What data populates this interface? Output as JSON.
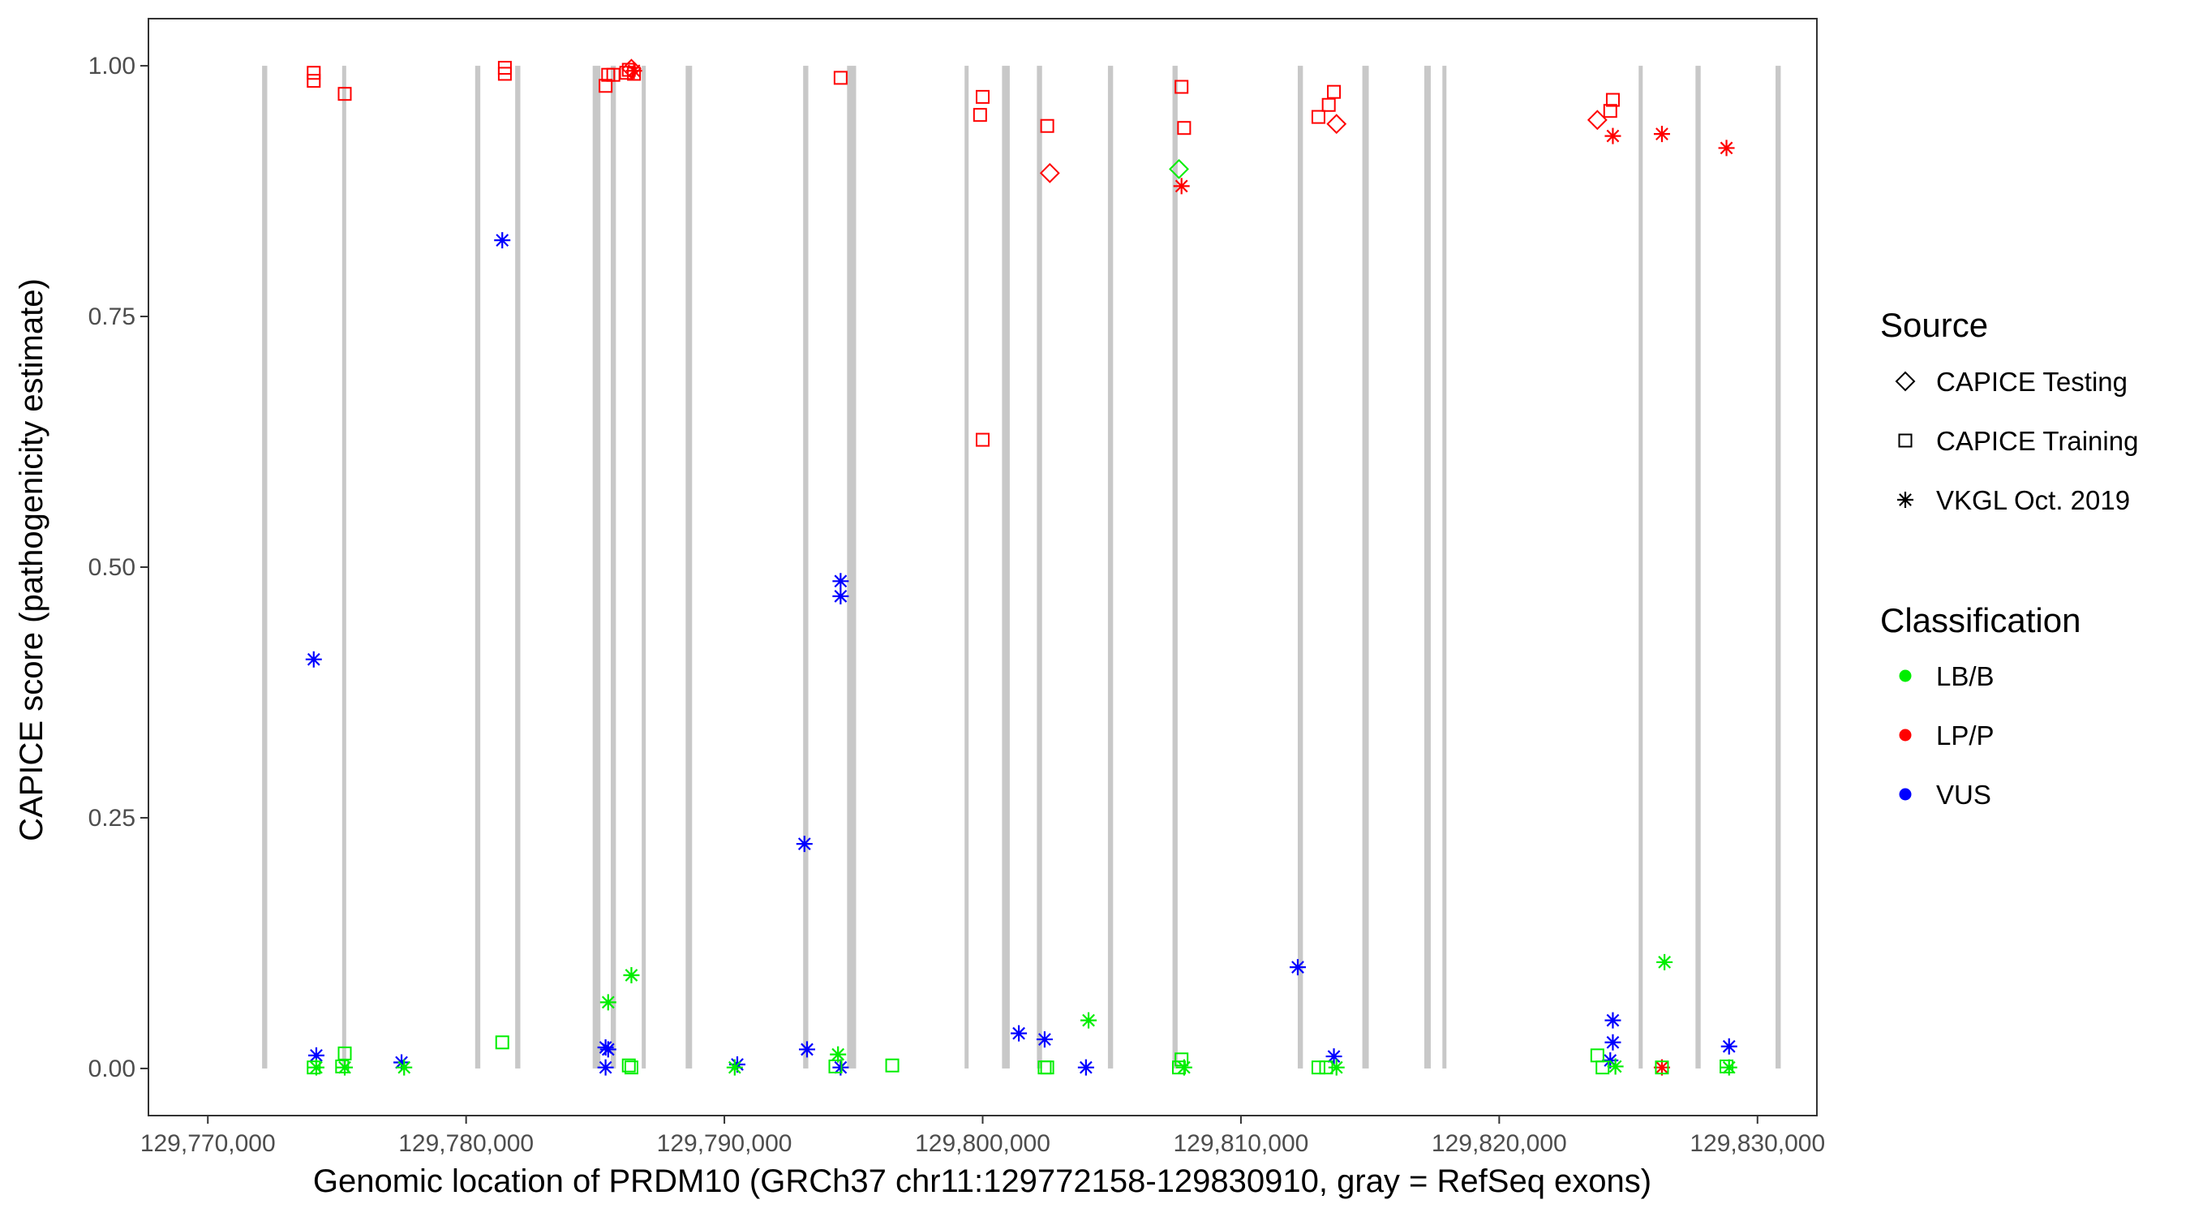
{
  "chart_data": {
    "type": "scatter",
    "xlabel": "Genomic location of PRDM10 (GRCh37 chr11:129772158-129830910, gray = RefSeq exons)",
    "ylabel": "CAPICE score (pathogenicity estimate)",
    "xlim": [
      129767700,
      129832300
    ],
    "ylim": [
      -0.047,
      1.047
    ],
    "x_ticks": [
      129770000,
      129780000,
      129790000,
      129800000,
      129810000,
      129820000,
      129830000
    ],
    "x_tick_labels": [
      "129,770,000",
      "129,780,000",
      "129,790,000",
      "129,800,000",
      "129,810,000",
      "129,820,000",
      "129,830,000"
    ],
    "y_ticks": [
      0,
      0.25,
      0.5,
      0.75,
      1
    ],
    "y_tick_labels": [
      "0.00",
      "0.25",
      "0.50",
      "0.75",
      "1.00"
    ],
    "grid": false,
    "exons": [
      [
        129772100,
        129772300
      ],
      [
        129775200,
        129775350
      ],
      [
        129780350,
        129780550
      ],
      [
        129781900,
        129782100
      ],
      [
        129784900,
        129785200
      ],
      [
        129785600,
        129785800
      ],
      [
        129786800,
        129786950
      ],
      [
        129788500,
        129788750
      ],
      [
        129793050,
        129793250
      ],
      [
        129794750,
        129795100
      ],
      [
        129799300,
        129799450
      ],
      [
        129800750,
        129801050
      ],
      [
        129802100,
        129802300
      ],
      [
        129804850,
        129805050
      ],
      [
        129807350,
        129807550
      ],
      [
        129812200,
        129812400
      ],
      [
        129814700,
        129814950
      ],
      [
        129817100,
        129817350
      ],
      [
        129817800,
        129817950
      ],
      [
        129825400,
        129825550
      ],
      [
        129827600,
        129827800
      ],
      [
        129830700,
        129830900
      ]
    ],
    "legend": {
      "position": "right",
      "source_title": "Source",
      "source_entries": [
        {
          "label": "CAPICE Testing",
          "shape": "diamond"
        },
        {
          "label": "CAPICE Training",
          "shape": "square"
        },
        {
          "label": "VKGL Oct. 2019",
          "shape": "asterisk"
        }
      ],
      "class_title": "Classification",
      "class_entries": [
        {
          "label": "LB/B",
          "color": "#00ee00"
        },
        {
          "label": "LP/P",
          "color": "#ff0000"
        },
        {
          "label": "VUS",
          "color": "#0000ff"
        }
      ]
    },
    "colors": {
      "LB/B": "#00ee00",
      "LP/P": "#ff0000",
      "VUS": "#0000ff"
    },
    "points": [
      {
        "x": 129774100,
        "y": 0.993,
        "source": "CAPICE Training",
        "class": "LP/P"
      },
      {
        "x": 129774100,
        "y": 0.985,
        "source": "CAPICE Training",
        "class": "LP/P"
      },
      {
        "x": 129775300,
        "y": 0.972,
        "source": "CAPICE Training",
        "class": "LP/P"
      },
      {
        "x": 129781500,
        "y": 0.998,
        "source": "CAPICE Training",
        "class": "LP/P"
      },
      {
        "x": 129781500,
        "y": 0.992,
        "source": "CAPICE Training",
        "class": "LP/P"
      },
      {
        "x": 129785500,
        "y": 0.991,
        "source": "CAPICE Training",
        "class": "LP/P"
      },
      {
        "x": 129785700,
        "y": 0.991,
        "source": "CAPICE Training",
        "class": "LP/P"
      },
      {
        "x": 129785400,
        "y": 0.98,
        "source": "CAPICE Training",
        "class": "LP/P"
      },
      {
        "x": 129786200,
        "y": 0.993,
        "source": "CAPICE Training",
        "class": "LP/P"
      },
      {
        "x": 129786300,
        "y": 0.996,
        "source": "CAPICE Training",
        "class": "LP/P"
      },
      {
        "x": 129786500,
        "y": 0.992,
        "source": "CAPICE Training",
        "class": "LP/P"
      },
      {
        "x": 129786400,
        "y": 0.997,
        "source": "CAPICE Testing",
        "class": "LP/P"
      },
      {
        "x": 129786500,
        "y": 0.995,
        "source": "VKGL Oct. 2019",
        "class": "LP/P"
      },
      {
        "x": 129794500,
        "y": 0.988,
        "source": "CAPICE Training",
        "class": "LP/P"
      },
      {
        "x": 129800000,
        "y": 0.969,
        "source": "CAPICE Training",
        "class": "LP/P"
      },
      {
        "x": 129799900,
        "y": 0.951,
        "source": "CAPICE Training",
        "class": "LP/P"
      },
      {
        "x": 129800000,
        "y": 0.627,
        "source": "CAPICE Training",
        "class": "LP/P"
      },
      {
        "x": 129802500,
        "y": 0.94,
        "source": "CAPICE Training",
        "class": "LP/P"
      },
      {
        "x": 129802600,
        "y": 0.893,
        "source": "CAPICE Testing",
        "class": "LP/P"
      },
      {
        "x": 129807700,
        "y": 0.979,
        "source": "CAPICE Training",
        "class": "LP/P"
      },
      {
        "x": 129807800,
        "y": 0.938,
        "source": "CAPICE Training",
        "class": "LP/P"
      },
      {
        "x": 129807700,
        "y": 0.88,
        "source": "VKGL Oct. 2019",
        "class": "LP/P"
      },
      {
        "x": 129813600,
        "y": 0.974,
        "source": "CAPICE Training",
        "class": "LP/P"
      },
      {
        "x": 129813400,
        "y": 0.961,
        "source": "CAPICE Training",
        "class": "LP/P"
      },
      {
        "x": 129813000,
        "y": 0.949,
        "source": "CAPICE Training",
        "class": "LP/P"
      },
      {
        "x": 129813700,
        "y": 0.942,
        "source": "CAPICE Testing",
        "class": "LP/P"
      },
      {
        "x": 129823800,
        "y": 0.946,
        "source": "CAPICE Testing",
        "class": "LP/P"
      },
      {
        "x": 129824400,
        "y": 0.966,
        "source": "CAPICE Training",
        "class": "LP/P"
      },
      {
        "x": 129824300,
        "y": 0.955,
        "source": "CAPICE Training",
        "class": "LP/P"
      },
      {
        "x": 129824400,
        "y": 0.93,
        "source": "VKGL Oct. 2019",
        "class": "LP/P"
      },
      {
        "x": 129826300,
        "y": 0.932,
        "source": "VKGL Oct. 2019",
        "class": "LP/P"
      },
      {
        "x": 129828800,
        "y": 0.918,
        "source": "VKGL Oct. 2019",
        "class": "LP/P"
      },
      {
        "x": 129826300,
        "y": 0.001,
        "source": "VKGL Oct. 2019",
        "class": "LP/P"
      },
      {
        "x": 129774100,
        "y": 0.408,
        "source": "VKGL Oct. 2019",
        "class": "VUS"
      },
      {
        "x": 129774200,
        "y": 0.013,
        "source": "VKGL Oct. 2019",
        "class": "VUS"
      },
      {
        "x": 129777500,
        "y": 0.006,
        "source": "VKGL Oct. 2019",
        "class": "VUS"
      },
      {
        "x": 129781400,
        "y": 0.826,
        "source": "VKGL Oct. 2019",
        "class": "VUS"
      },
      {
        "x": 129785400,
        "y": 0.021,
        "source": "VKGL Oct. 2019",
        "class": "VUS"
      },
      {
        "x": 129785500,
        "y": 0.019,
        "source": "VKGL Oct. 2019",
        "class": "VUS"
      },
      {
        "x": 129785400,
        "y": 0.001,
        "source": "VKGL Oct. 2019",
        "class": "VUS"
      },
      {
        "x": 129790500,
        "y": 0.004,
        "source": "VKGL Oct. 2019",
        "class": "VUS"
      },
      {
        "x": 129793100,
        "y": 0.224,
        "source": "VKGL Oct. 2019",
        "class": "VUS"
      },
      {
        "x": 129793200,
        "y": 0.019,
        "source": "VKGL Oct. 2019",
        "class": "VUS"
      },
      {
        "x": 129794500,
        "y": 0.486,
        "source": "VKGL Oct. 2019",
        "class": "VUS"
      },
      {
        "x": 129794500,
        "y": 0.471,
        "source": "VKGL Oct. 2019",
        "class": "VUS"
      },
      {
        "x": 129794500,
        "y": 0.001,
        "source": "VKGL Oct. 2019",
        "class": "VUS"
      },
      {
        "x": 129801400,
        "y": 0.035,
        "source": "VKGL Oct. 2019",
        "class": "VUS"
      },
      {
        "x": 129802400,
        "y": 0.029,
        "source": "VKGL Oct. 2019",
        "class": "VUS"
      },
      {
        "x": 129804000,
        "y": 0.001,
        "source": "VKGL Oct. 2019",
        "class": "VUS"
      },
      {
        "x": 129812200,
        "y": 0.101,
        "source": "VKGL Oct. 2019",
        "class": "VUS"
      },
      {
        "x": 129813600,
        "y": 0.012,
        "source": "VKGL Oct. 2019",
        "class": "VUS"
      },
      {
        "x": 129824400,
        "y": 0.048,
        "source": "VKGL Oct. 2019",
        "class": "VUS"
      },
      {
        "x": 129824400,
        "y": 0.026,
        "source": "VKGL Oct. 2019",
        "class": "VUS"
      },
      {
        "x": 129824300,
        "y": 0.008,
        "source": "VKGL Oct. 2019",
        "class": "VUS"
      },
      {
        "x": 129828900,
        "y": 0.022,
        "source": "VKGL Oct. 2019",
        "class": "VUS"
      },
      {
        "x": 129774100,
        "y": 0.001,
        "source": "CAPICE Training",
        "class": "LB/B"
      },
      {
        "x": 129774200,
        "y": 0.001,
        "source": "VKGL Oct. 2019",
        "class": "LB/B"
      },
      {
        "x": 129775300,
        "y": 0.015,
        "source": "CAPICE Training",
        "class": "LB/B"
      },
      {
        "x": 129775200,
        "y": 0.002,
        "source": "CAPICE Training",
        "class": "LB/B"
      },
      {
        "x": 129775300,
        "y": 0.001,
        "source": "VKGL Oct. 2019",
        "class": "LB/B"
      },
      {
        "x": 129777600,
        "y": 0.001,
        "source": "VKGL Oct. 2019",
        "class": "LB/B"
      },
      {
        "x": 129781400,
        "y": 0.026,
        "source": "CAPICE Training",
        "class": "LB/B"
      },
      {
        "x": 129785500,
        "y": 0.066,
        "source": "VKGL Oct. 2019",
        "class": "LB/B"
      },
      {
        "x": 129786400,
        "y": 0.093,
        "source": "VKGL Oct. 2019",
        "class": "LB/B"
      },
      {
        "x": 129786300,
        "y": 0.003,
        "source": "CAPICE Training",
        "class": "LB/B"
      },
      {
        "x": 129786400,
        "y": 0.001,
        "source": "CAPICE Training",
        "class": "LB/B"
      },
      {
        "x": 129790400,
        "y": 0.001,
        "source": "VKGL Oct. 2019",
        "class": "LB/B"
      },
      {
        "x": 129794400,
        "y": 0.014,
        "source": "VKGL Oct. 2019",
        "class": "LB/B"
      },
      {
        "x": 129794300,
        "y": 0.002,
        "source": "CAPICE Training",
        "class": "LB/B"
      },
      {
        "x": 129796500,
        "y": 0.003,
        "source": "CAPICE Training",
        "class": "LB/B"
      },
      {
        "x": 129802400,
        "y": 0.001,
        "source": "CAPICE Training",
        "class": "LB/B"
      },
      {
        "x": 129802500,
        "y": 0.001,
        "source": "CAPICE Training",
        "class": "LB/B"
      },
      {
        "x": 129804100,
        "y": 0.048,
        "source": "VKGL Oct. 2019",
        "class": "LB/B"
      },
      {
        "x": 129807600,
        "y": 0.897,
        "source": "CAPICE Testing",
        "class": "LB/B"
      },
      {
        "x": 129807700,
        "y": 0.009,
        "source": "CAPICE Training",
        "class": "LB/B"
      },
      {
        "x": 129807600,
        "y": 0.001,
        "source": "CAPICE Training",
        "class": "LB/B"
      },
      {
        "x": 129807800,
        "y": 0.001,
        "source": "VKGL Oct. 2019",
        "class": "LB/B"
      },
      {
        "x": 129813000,
        "y": 0.001,
        "source": "CAPICE Training",
        "class": "LB/B"
      },
      {
        "x": 129813300,
        "y": 0.001,
        "source": "CAPICE Training",
        "class": "LB/B"
      },
      {
        "x": 129813700,
        "y": 0.001,
        "source": "VKGL Oct. 2019",
        "class": "LB/B"
      },
      {
        "x": 129823800,
        "y": 0.013,
        "source": "CAPICE Training",
        "class": "LB/B"
      },
      {
        "x": 129824000,
        "y": 0.001,
        "source": "CAPICE Training",
        "class": "LB/B"
      },
      {
        "x": 129824500,
        "y": 0.002,
        "source": "VKGL Oct. 2019",
        "class": "LB/B"
      },
      {
        "x": 129826400,
        "y": 0.106,
        "source": "VKGL Oct. 2019",
        "class": "LB/B"
      },
      {
        "x": 129826300,
        "y": 0.001,
        "source": "CAPICE Training",
        "class": "LB/B"
      },
      {
        "x": 129828800,
        "y": 0.002,
        "source": "CAPICE Training",
        "class": "LB/B"
      },
      {
        "x": 129828900,
        "y": 0.001,
        "source": "VKGL Oct. 2019",
        "class": "LB/B"
      }
    ]
  }
}
